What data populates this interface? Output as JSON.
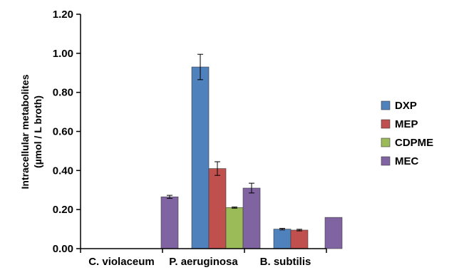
{
  "chart_data": {
    "type": "bar",
    "categories": [
      "C. violaceum",
      "P. aeruginosa",
      "B. subtilis"
    ],
    "ylabel_line1": "Intracellular metabolites",
    "ylabel_line2": "(µmol / L broth)",
    "xlabel": "",
    "ylim": [
      0,
      1.2
    ],
    "yticks": [
      "0.00",
      "0.20",
      "0.40",
      "0.60",
      "0.80",
      "1.00",
      "1.20"
    ],
    "grid": false,
    "legend_position": "right",
    "series": [
      {
        "name": "DXP",
        "color": "#4F81BD",
        "values": [
          0,
          0.93,
          0.1
        ],
        "errors": [
          0,
          0.065,
          0.004
        ]
      },
      {
        "name": "MEP",
        "color": "#C0504D",
        "values": [
          0,
          0.41,
          0.095
        ],
        "errors": [
          0,
          0.035,
          0.004
        ]
      },
      {
        "name": "CDPME",
        "color": "#9BBB59",
        "values": [
          0,
          0.21,
          0
        ],
        "errors": [
          0,
          0.003,
          0
        ]
      },
      {
        "name": "MEC",
        "color": "#8064A2",
        "values": [
          0.265,
          0.31,
          0.16
        ],
        "errors": [
          0.008,
          0.025,
          0
        ]
      }
    ]
  }
}
